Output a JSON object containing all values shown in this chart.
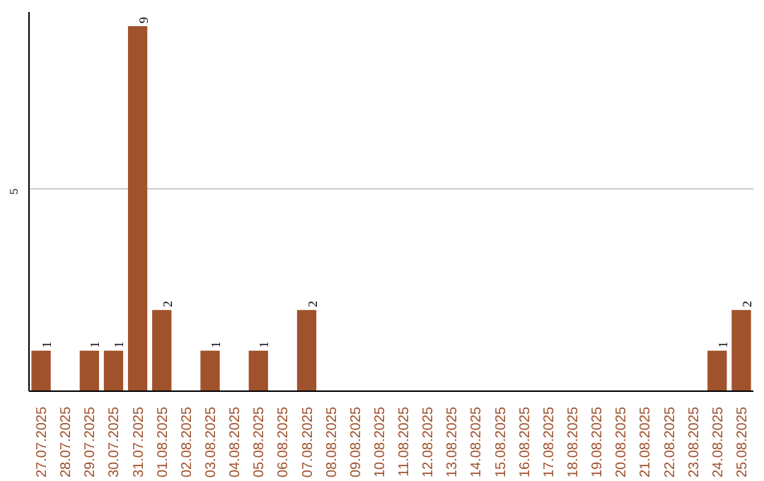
{
  "chart_data": {
    "type": "bar",
    "categories": [
      "27.07.2025",
      "28.07.2025",
      "29.07.2025",
      "30.07.2025",
      "31.07.2025",
      "01.08.2025",
      "02.08.2025",
      "03.08.2025",
      "04.08.2025",
      "05.08.2025",
      "06.08.2025",
      "07.08.2025",
      "08.08.2025",
      "09.08.2025",
      "10.08.2025",
      "11.08.2025",
      "12.08.2025",
      "13.08.2025",
      "14.08.2025",
      "15.08.2025",
      "16.08.2025",
      "17.08.2025",
      "18.08.2025",
      "19.08.2025",
      "20.08.2025",
      "21.08.2025",
      "22.08.2025",
      "23.08.2025",
      "24.08.2025",
      "25.08.2025"
    ],
    "values": [
      1,
      0,
      1,
      1,
      9,
      2,
      0,
      1,
      0,
      1,
      0,
      2,
      0,
      0,
      0,
      0,
      0,
      0,
      0,
      0,
      0,
      0,
      0,
      0,
      0,
      0,
      0,
      0,
      1,
      2
    ],
    "value_labels": [
      "1",
      null,
      "1",
      "1",
      "9",
      "2",
      null,
      "1",
      null,
      "1",
      null,
      "2",
      null,
      null,
      null,
      null,
      null,
      null,
      null,
      null,
      null,
      null,
      null,
      null,
      null,
      null,
      null,
      null,
      "1",
      "2"
    ],
    "color": "#a0522d",
    "ylim": [
      0,
      9.35
    ],
    "yticks": [
      {
        "value": 0,
        "label": null
      },
      5
    ],
    "grid": "y"
  }
}
